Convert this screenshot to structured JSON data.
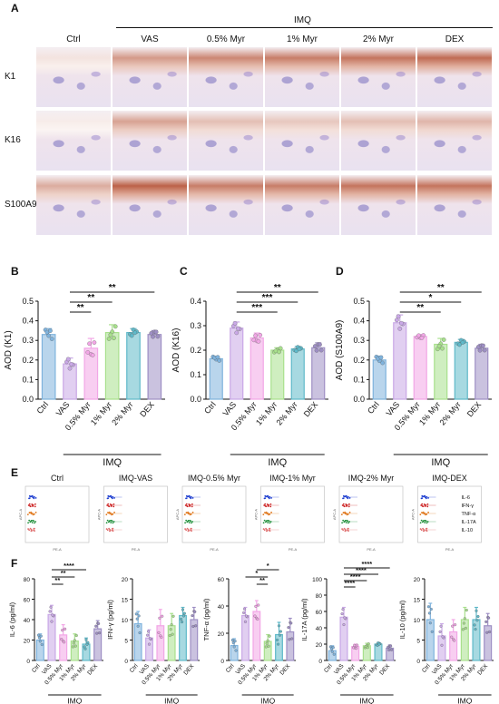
{
  "panels": {
    "A": "A",
    "B": "B",
    "C": "C",
    "D": "D",
    "E": "E",
    "F": "F"
  },
  "histology": {
    "group_header": "IMQ",
    "columns": [
      "Ctrl",
      "VAS",
      "0.5% Myr",
      "1% Myr",
      "2% Myr",
      "DEX"
    ],
    "rows": [
      "K1",
      "K16",
      "S100A9"
    ]
  },
  "bar_categories": [
    "Ctrl",
    "VAS",
    "0.5% Myr",
    "1% Myr",
    "2% Myr",
    "DEX"
  ],
  "bar_colors": [
    "#7fb3dd",
    "#c9a8e6",
    "#f2a6e6",
    "#a8e08c",
    "#5fb9c9",
    "#9e8fc4"
  ],
  "x_group_label": "IMQ",
  "flow": {
    "titles": [
      "Ctrl",
      "IMQ-VAS",
      "IMQ-0.5% Myr",
      "IMQ-1% Myr",
      "IMQ-2% Myr",
      "IMQ-DEX"
    ],
    "legend": [
      "IL-6",
      "IFN-γ",
      "TNF-α",
      "IL-17A",
      "IL-10"
    ],
    "legend_colors": [
      "#1f3fd0",
      "#cc2222",
      "#e07a20",
      "#1f8f3a",
      "#e07070"
    ],
    "x_axis": "PE-A",
    "y_axis": "APC-A"
  },
  "chart_data": [
    {
      "panel": "B",
      "type": "bar",
      "ylabel": "AOD (K1)",
      "ylim": [
        0,
        0.5
      ],
      "yticks": [
        "0.0",
        "0.1",
        "0.2",
        "0.3",
        "0.4",
        "0.5"
      ],
      "categories": [
        "Ctrl",
        "VAS",
        "0.5% Myr",
        "1% Myr",
        "2% Myr",
        "DEX"
      ],
      "values": [
        0.33,
        0.18,
        0.26,
        0.34,
        0.34,
        0.33
      ],
      "errors": [
        0.03,
        0.03,
        0.05,
        0.04,
        0.02,
        0.02
      ],
      "significance": [
        {
          "from": "VAS",
          "to": "0.5% Myr",
          "label": "**"
        },
        {
          "from": "VAS",
          "to": "1% Myr",
          "label": "**"
        },
        {
          "from": "VAS",
          "to": "DEX",
          "label": "**"
        }
      ]
    },
    {
      "panel": "C",
      "type": "bar",
      "ylabel": "AOD (K16)",
      "ylim": [
        0,
        0.4
      ],
      "yticks": [
        "0.0",
        "0.1",
        "0.2",
        "0.3",
        "0.4"
      ],
      "categories": [
        "Ctrl",
        "VAS",
        "0.5% Myr",
        "1% Myr",
        "2% Myr",
        "DEX"
      ],
      "values": [
        0.165,
        0.29,
        0.25,
        0.2,
        0.205,
        0.21
      ],
      "errors": [
        0.01,
        0.025,
        0.02,
        0.01,
        0.01,
        0.02
      ],
      "significance": [
        {
          "from": "VAS",
          "to": "1% Myr",
          "label": "***"
        },
        {
          "from": "VAS",
          "to": "2% Myr",
          "label": "***"
        },
        {
          "from": "VAS",
          "to": "DEX",
          "label": "**"
        }
      ]
    },
    {
      "panel": "D",
      "type": "bar",
      "ylabel": "AOD (S100A9)",
      "ylim": [
        0,
        0.5
      ],
      "yticks": [
        "0.0",
        "0.1",
        "0.2",
        "0.3",
        "0.4",
        "0.5"
      ],
      "categories": [
        "Ctrl",
        "VAS",
        "0.5% Myr",
        "1% Myr",
        "2% Myr",
        "DEX"
      ],
      "values": [
        0.2,
        0.39,
        0.32,
        0.28,
        0.29,
        0.26
      ],
      "errors": [
        0.02,
        0.04,
        0.01,
        0.03,
        0.015,
        0.02
      ],
      "significance": [
        {
          "from": "VAS",
          "to": "1% Myr",
          "label": "**"
        },
        {
          "from": "VAS",
          "to": "2% Myr",
          "label": "*"
        },
        {
          "from": "VAS",
          "to": "DEX",
          "label": "**"
        }
      ]
    },
    {
      "panel": "F1",
      "type": "bar",
      "ylabel": "IL-6 (pg/ml)",
      "ylim": [
        0,
        80
      ],
      "yticks": [
        "0",
        "20",
        "40",
        "60",
        "80"
      ],
      "categories": [
        "Ctrl",
        "VAS",
        "0.5% Myr",
        "1% Myr",
        "2% Myr",
        "DEX"
      ],
      "values": [
        20,
        45,
        25,
        19,
        16,
        31
      ],
      "errors": [
        6,
        9,
        10,
        7,
        6,
        8
      ],
      "significance": [
        {
          "from": "VAS",
          "to": "0.5% Myr",
          "label": "**"
        },
        {
          "from": "VAS",
          "to": "1% Myr",
          "label": "**"
        },
        {
          "from": "VAS",
          "to": "2% Myr",
          "label": "****"
        }
      ]
    },
    {
      "panel": "F2",
      "type": "bar",
      "ylabel": "IFN-γ (pg/ml)",
      "ylim": [
        0,
        20
      ],
      "yticks": [
        "0",
        "5",
        "10",
        "15",
        "20"
      ],
      "categories": [
        "Ctrl",
        "VAS",
        "0.5% Myr",
        "1% Myr",
        "2% Myr",
        "DEX"
      ],
      "values": [
        9,
        5.5,
        8.5,
        8.5,
        11,
        10
      ],
      "errors": [
        3,
        2,
        4,
        3,
        2,
        3
      ],
      "significance": []
    },
    {
      "panel": "F3",
      "type": "bar",
      "ylabel": "TNF-α (pg/ml)",
      "ylim": [
        0,
        60
      ],
      "yticks": [
        "0",
        "20",
        "40",
        "60"
      ],
      "categories": [
        "Ctrl",
        "VAS",
        "0.5% Myr",
        "1% Myr",
        "2% Myr",
        "DEX"
      ],
      "values": [
        11,
        33,
        36,
        14,
        19,
        21
      ],
      "errors": [
        5,
        6,
        8,
        5,
        9,
        10
      ],
      "significance": [
        {
          "from": "0.5% Myr",
          "to": "1% Myr",
          "label": "**"
        },
        {
          "from": "VAS",
          "to": "1% Myr",
          "label": "*"
        },
        {
          "from": "0.5% Myr",
          "to": "2% Myr",
          "label": "*"
        }
      ]
    },
    {
      "panel": "F4",
      "type": "bar",
      "ylabel": "IL-17A (pg/ml)",
      "ylim": [
        0,
        100
      ],
      "yticks": [
        "0",
        "20",
        "40",
        "60",
        "80",
        "100"
      ],
      "categories": [
        "Ctrl",
        "VAS",
        "0.5% Myr",
        "1% Myr",
        "2% Myr",
        "DEX"
      ],
      "values": [
        12,
        53,
        17,
        18,
        20,
        15
      ],
      "errors": [
        6,
        12,
        3,
        3,
        2,
        4
      ],
      "significance": [
        {
          "from": "VAS",
          "to": "0.5% Myr",
          "label": "****"
        },
        {
          "from": "VAS",
          "to": "1% Myr",
          "label": "****"
        },
        {
          "from": "VAS",
          "to": "2% Myr",
          "label": "****"
        },
        {
          "from": "VAS",
          "to": "DEX",
          "label": "****"
        }
      ]
    },
    {
      "panel": "F5",
      "type": "bar",
      "ylabel": "IL-10 (pg/ml)",
      "ylim": [
        0,
        20
      ],
      "yticks": [
        "0",
        "5",
        "10",
        "15",
        "20"
      ],
      "categories": [
        "Ctrl",
        "VAS",
        "0.5% Myr",
        "1% Myr",
        "2% Myr",
        "DEX"
      ],
      "values": [
        10,
        6,
        7,
        10,
        10,
        8.5
      ],
      "errors": [
        4,
        3,
        3,
        3,
        3,
        3
      ],
      "significance": []
    }
  ]
}
